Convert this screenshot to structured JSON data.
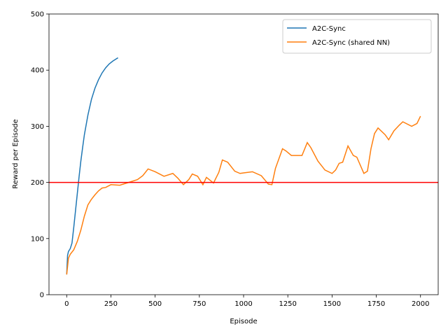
{
  "chart_data": {
    "type": "line",
    "xlabel": "Episode",
    "ylabel": "Reward per Episode",
    "xlim": [
      -100,
      2100
    ],
    "ylim": [
      0,
      500
    ],
    "xticks": [
      0,
      250,
      500,
      750,
      1000,
      1250,
      1500,
      1750,
      2000
    ],
    "yticks": [
      0,
      100,
      200,
      300,
      400,
      500
    ],
    "legend": "upper right",
    "hline": {
      "value": 200,
      "color": "#ff0000"
    },
    "series": [
      {
        "name": "A2C-Sync",
        "color": "#1f77b4",
        "x": [
          0,
          5,
          10,
          20,
          30,
          40,
          50,
          60,
          70,
          80,
          90,
          100,
          120,
          140,
          160,
          180,
          200,
          220,
          240,
          260,
          280,
          290
        ],
        "values": [
          36,
          70,
          77,
          82,
          92,
          120,
          150,
          180,
          210,
          238,
          262,
          285,
          320,
          348,
          368,
          383,
          395,
          404,
          411,
          416,
          420,
          422
        ]
      },
      {
        "name": "A2C-Sync (shared NN)",
        "color": "#ff7f0e",
        "x": [
          0,
          10,
          20,
          40,
          60,
          80,
          100,
          120,
          140,
          160,
          180,
          200,
          220,
          250,
          300,
          350,
          400,
          430,
          460,
          500,
          550,
          600,
          630,
          660,
          690,
          710,
          740,
          770,
          790,
          830,
          860,
          880,
          910,
          950,
          980,
          1000,
          1050,
          1100,
          1140,
          1160,
          1180,
          1220,
          1240,
          1270,
          1300,
          1330,
          1360,
          1380,
          1420,
          1460,
          1500,
          1520,
          1540,
          1560,
          1590,
          1620,
          1640,
          1680,
          1700,
          1720,
          1740,
          1760,
          1800,
          1820,
          1850,
          1880,
          1900,
          1950,
          1980,
          2000
        ],
        "values": [
          36,
          65,
          72,
          80,
          95,
          115,
          140,
          160,
          170,
          178,
          185,
          190,
          191,
          196,
          195,
          200,
          205,
          212,
          224,
          219,
          211,
          216,
          207,
          196,
          205,
          215,
          211,
          196,
          209,
          199,
          218,
          240,
          236,
          220,
          216,
          217,
          219,
          212,
          197,
          196,
          225,
          260,
          256,
          248,
          248,
          248,
          271,
          262,
          238,
          222,
          216,
          222,
          234,
          236,
          265,
          248,
          245,
          216,
          220,
          260,
          287,
          297,
          285,
          276,
          292,
          302,
          308,
          300,
          305,
          318
        ]
      }
    ]
  }
}
